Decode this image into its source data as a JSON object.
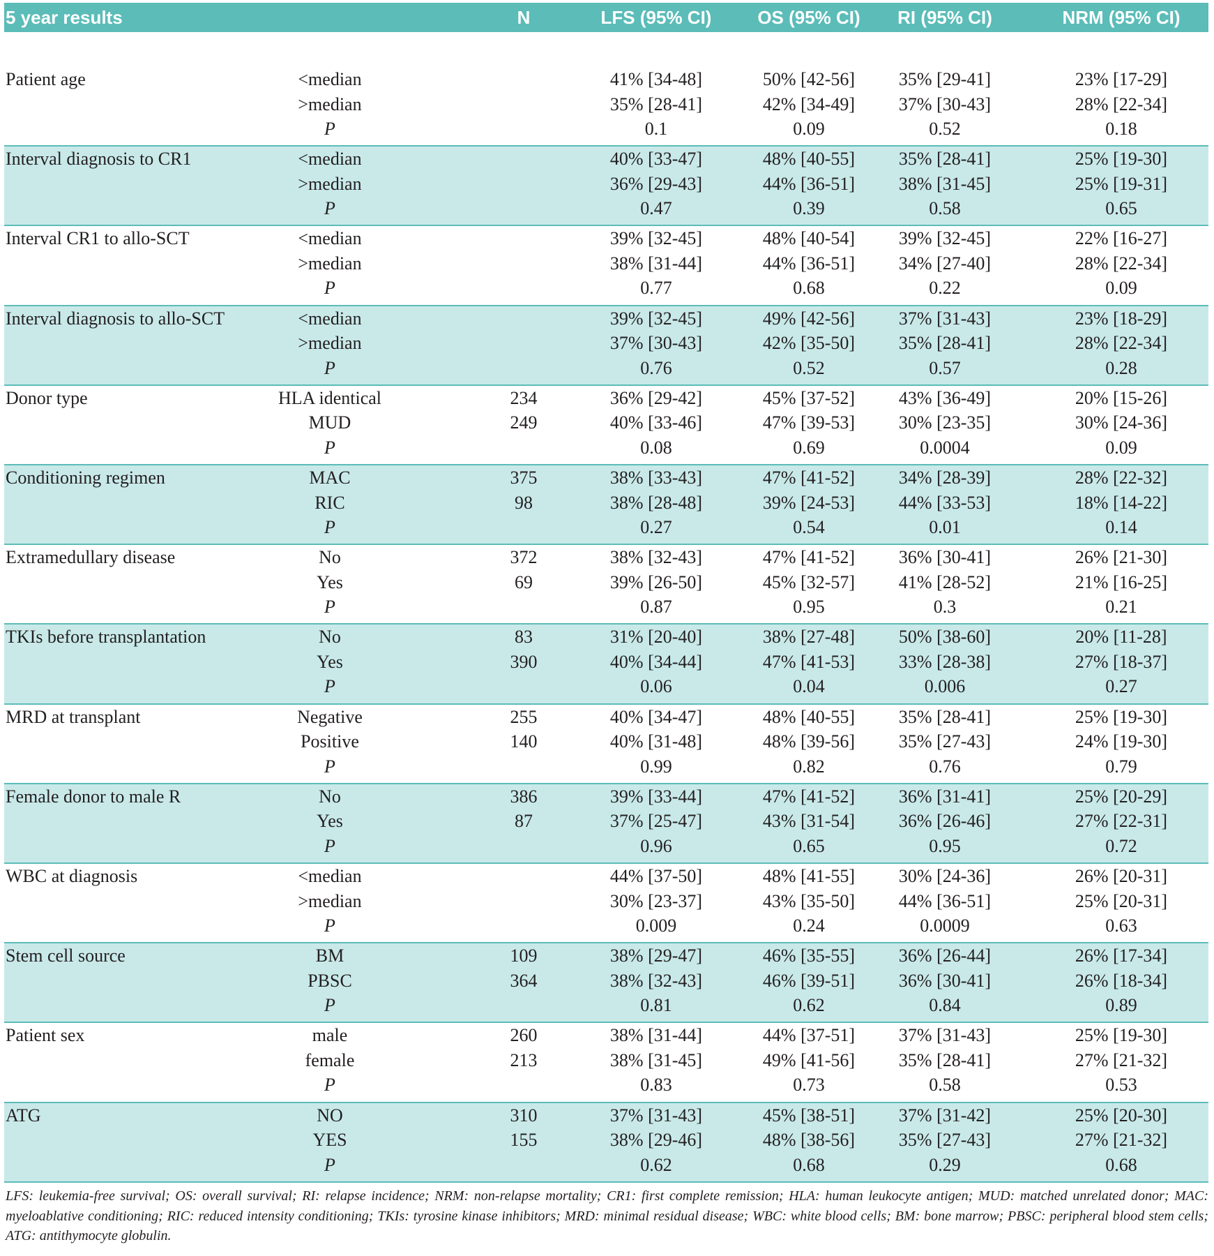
{
  "table": {
    "header": [
      "5 year results",
      "N",
      "LFS (95% CI)",
      "OS  (95% CI)",
      "RI (95% CI)",
      "NRM (95% CI)"
    ],
    "groups": [
      {
        "label": "Patient age",
        "rows": [
          [
            "<median",
            null,
            "41% [34-48]",
            "50% [42-56]",
            "35% [29-41]",
            "23% [17-29]"
          ],
          [
            ">median",
            null,
            "35% [28-41]",
            "42% [34-49]",
            "37% [30-43]",
            "28% [22-34]"
          ],
          [
            "P",
            null,
            "0.1",
            "0.09",
            "0.52",
            "0.18"
          ]
        ]
      },
      {
        "label": "Interval diagnosis to CR1",
        "rows": [
          [
            "<median",
            null,
            "40% [33-47]",
            "48% [40-55]",
            "35% [28-41]",
            "25% [19-30]"
          ],
          [
            ">median",
            null,
            "36% [29-43]",
            "44% [36-51]",
            "38% [31-45]",
            "25% [19-31]"
          ],
          [
            "P",
            null,
            "0.47",
            "0.39",
            "0.58",
            "0.65"
          ]
        ]
      },
      {
        "label": "Interval CR1 to allo-SCT",
        "rows": [
          [
            "<median",
            null,
            "39% [32-45]",
            "48% [40-54]",
            "39% [32-45]",
            "22% [16-27]"
          ],
          [
            ">median",
            null,
            "38% [31-44]",
            "44% [36-51]",
            "34% [27-40]",
            "28% [22-34]"
          ],
          [
            "P",
            null,
            "0.77",
            "0.68",
            "0.22",
            "0.09"
          ]
        ]
      },
      {
        "label": "Interval diagnosis to allo-SCT",
        "rows": [
          [
            "<median",
            null,
            "39% [32-45]",
            "49% [42-56]",
            "37% [31-43]",
            "23% [18-29]"
          ],
          [
            ">median",
            null,
            "37% [30-43]",
            "42% [35-50]",
            "35% [28-41]",
            "28% [22-34]"
          ],
          [
            "P",
            null,
            "0.76",
            "0.52",
            "0.57",
            "0.28"
          ]
        ]
      },
      {
        "label": "Donor type",
        "rows": [
          [
            "HLA identical",
            "234",
            "36% [29-42]",
            "45% [37-52]",
            "43% [36-49]",
            "20% [15-26]"
          ],
          [
            "MUD",
            "249",
            "40% [33-46]",
            "47% [39-53]",
            "30% [23-35]",
            "30% [24-36]"
          ],
          [
            "P",
            null,
            "0.08",
            "0.69",
            "0.0004",
            "0.09"
          ]
        ]
      },
      {
        "label": "Conditioning regimen",
        "rows": [
          [
            "MAC",
            "375",
            "38% [33-43]",
            "47% [41-52]",
            "34% [28-39]",
            "28% [22-32]"
          ],
          [
            "RIC",
            "98",
            "38% [28-48]",
            "39% [24-53]",
            "44% [33-53]",
            "18% [14-22]"
          ],
          [
            "P",
            null,
            "0.27",
            "0.54",
            "0.01",
            "0.14"
          ]
        ]
      },
      {
        "label": "Extramedullary disease",
        "rows": [
          [
            "No",
            "372",
            "38% [32-43]",
            "47% [41-52]",
            "36% [30-41]",
            "26% [21-30]"
          ],
          [
            "Yes",
            "69",
            "39% [26-50]",
            "45% [32-57]",
            "41% [28-52]",
            "21% [16-25]"
          ],
          [
            "P",
            null,
            "0.87",
            "0.95",
            "0.3",
            "0.21"
          ]
        ]
      },
      {
        "label": "TKIs before transplantation",
        "rows": [
          [
            "No",
            "83",
            "31% [20-40]",
            "38% [27-48]",
            "50% [38-60]",
            "20% [11-28]"
          ],
          [
            "Yes",
            "390",
            "40% [34-44]",
            "47% [41-53]",
            "33% [28-38]",
            "27% [18-37]"
          ],
          [
            "P",
            null,
            "0.06",
            "0.04",
            "0.006",
            "0.27"
          ]
        ]
      },
      {
        "label": "MRD at transplant",
        "rows": [
          [
            "Negative",
            "255",
            "40% [34-47]",
            "48% [40-55]",
            "35% [28-41]",
            "25% [19-30]"
          ],
          [
            "Positive",
            "140",
            "40% [31-48]",
            "48% [39-56]",
            "35% [27-43]",
            "24% [19-30]"
          ],
          [
            "P",
            null,
            "0.99",
            "0.82",
            "0.76",
            "0.79"
          ]
        ]
      },
      {
        "label": "Female donor to male R",
        "rows": [
          [
            "No",
            "386",
            "39% [33-44]",
            "47% [41-52]",
            "36% [31-41]",
            "25% [20-29]"
          ],
          [
            "Yes",
            "87",
            "37% [25-47]",
            "43% [31-54]",
            "36% [26-46]",
            "27% [22-31]"
          ],
          [
            "P",
            null,
            "0.96",
            "0.65",
            "0.95",
            "0.72"
          ]
        ]
      },
      {
        "label": "WBC at diagnosis",
        "rows": [
          [
            "<median",
            null,
            "44% [37-50]",
            "48% [41-55]",
            "30% [24-36]",
            "26% [20-31]"
          ],
          [
            ">median",
            null,
            "30% [23-37]",
            "43% [35-50]",
            "44% [36-51]",
            "25% [20-31]"
          ],
          [
            "P",
            null,
            "0.009",
            "0.24",
            "0.0009",
            "0.63"
          ]
        ]
      },
      {
        "label": "Stem cell source",
        "rows": [
          [
            "BM",
            "109",
            "38% [29-47]",
            "46% [35-55]",
            "36% [26-44]",
            "26% [17-34]"
          ],
          [
            "PBSC",
            "364",
            "38% [32-43]",
            "46% [39-51]",
            "36% [30-41]",
            "26% [18-34]"
          ],
          [
            "P",
            null,
            "0.81",
            "0.62",
            "0.84",
            "0.89"
          ]
        ]
      },
      {
        "label": "Patient sex",
        "rows": [
          [
            "male",
            "260",
            "38% [31-44]",
            "44% [37-51]",
            "37% [31-43]",
            "25% [19-30]"
          ],
          [
            "female",
            "213",
            "38% [31-45]",
            "49% [41-56]",
            "35% [28-41]",
            "27% [21-32]"
          ],
          [
            "P",
            null,
            "0.83",
            "0.73",
            "0.58",
            "0.53"
          ]
        ]
      },
      {
        "label": "ATG",
        "rows": [
          [
            "NO",
            "310",
            "37% [31-43]",
            "45% [38-51]",
            "37% [31-42]",
            "25% [20-30]"
          ],
          [
            "YES",
            "155",
            "38% [29-46]",
            "48% [38-56]",
            "35% [27-43]",
            "27% [21-32]"
          ],
          [
            "P",
            null,
            "0.62",
            "0.68",
            "0.29",
            "0.68"
          ]
        ]
      }
    ],
    "footnote": "LFS: leukemia-free survival; OS: overall survival; RI: relapse incidence; NRM: non-relapse mortality; CR1: first complete remission; HLA: human leukocyte antigen; MUD: matched unrelated donor; MAC: myeloablative conditioning; RIC: reduced intensity conditioning; TKIs: tyrosine kinase inhibitors; MRD: minimal residual disease; WBC: white blood cells; BM: bone marrow; PBSC: peripheral blood stem cells; ATG: antithymocyte globulin."
  }
}
